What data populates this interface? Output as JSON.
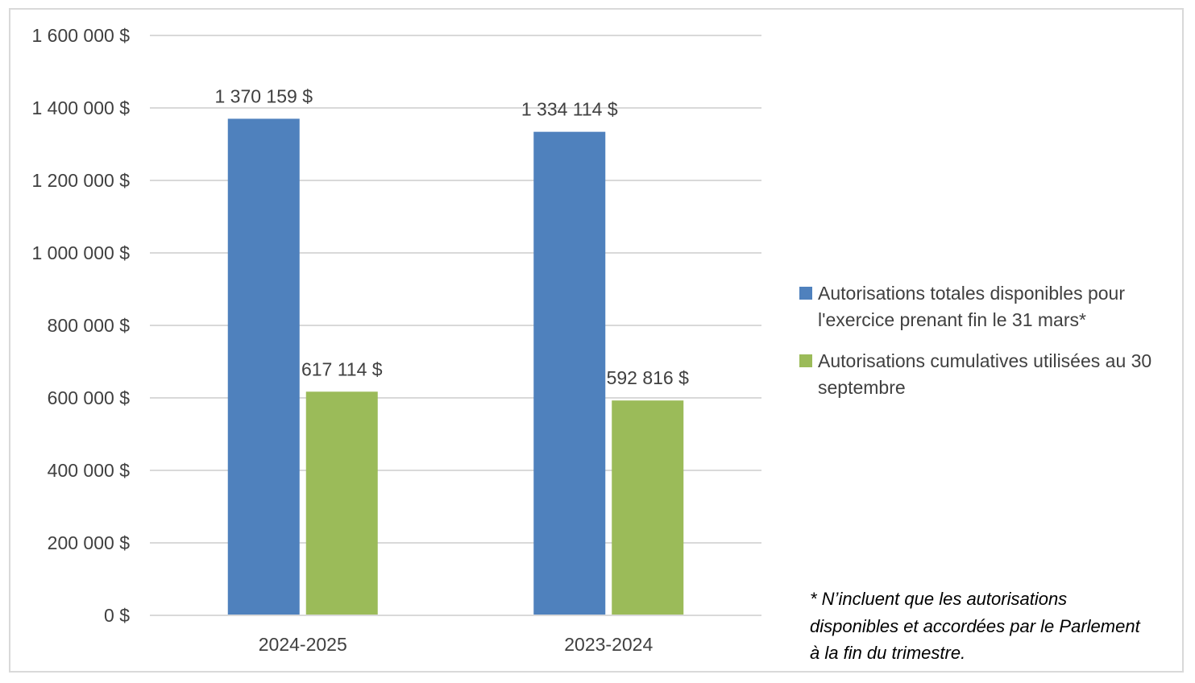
{
  "chart_data": {
    "type": "bar",
    "categories": [
      "2024-2025",
      "2023-2024"
    ],
    "series": [
      {
        "name": "Autorisations totales disponibles pour l'exercice prenant fin le 31 mars*",
        "values": [
          1370159,
          1334114
        ],
        "labels": [
          "1 370 159 $",
          "1 334 114 $"
        ],
        "color": "#4f81bd"
      },
      {
        "name": "Autorisations cumulatives utilisées au 30 septembre",
        "values": [
          617114,
          592816
        ],
        "labels": [
          "617 114 $",
          "592 816 $"
        ],
        "color": "#9bbb59"
      }
    ],
    "ylim": [
      0,
      1600000
    ],
    "yticks": [
      0,
      200000,
      400000,
      600000,
      800000,
      1000000,
      1200000,
      1400000,
      1600000
    ],
    "ytick_labels": [
      "0 $",
      "200 000 $",
      "400 000 $",
      "600 000 $",
      "800 000 $",
      "1 000 000 $",
      "1 200 000 $",
      "1 400 000 $",
      "1 600 000 $"
    ],
    "grid": true,
    "legend_position": "right",
    "title": "",
    "xlabel": "",
    "ylabel": ""
  },
  "footnote": "* N’incluent que les autorisations disponibles et accordées par le Parlement à la fin du trimestre."
}
